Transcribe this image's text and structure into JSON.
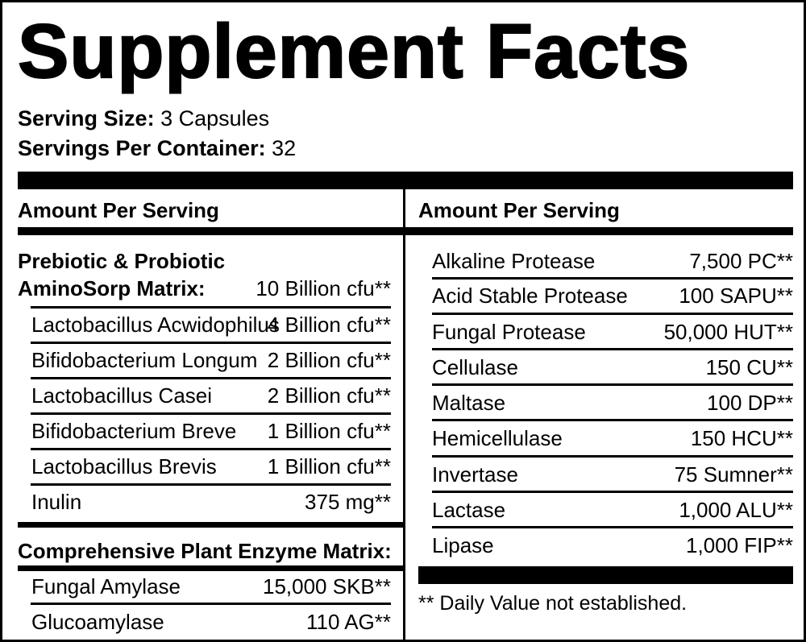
{
  "title": "Supplement Facts",
  "serving": {
    "size_label": "Serving Size:",
    "size_value": "3 Capsules",
    "per_container_label": "Servings Per Container:",
    "per_container_value": "32"
  },
  "left": {
    "header": "Amount Per Serving",
    "blend1": {
      "name_line1": "Prebiotic & Probiotic",
      "name_line2": "AminoSorp Matrix:",
      "amount": "10 Billion cfu**",
      "items": [
        {
          "name": "Lactobacillus Acwidophilus",
          "amount": "4 Billion cfu**"
        },
        {
          "name": "Bifidobacterium Longum",
          "amount": "2 Billion cfu**"
        },
        {
          "name": "Lactobacillus Casei",
          "amount": "2 Billion cfu**"
        },
        {
          "name": "Bifidobacterium Breve",
          "amount": "1 Billion cfu**"
        },
        {
          "name": "Lactobacillus Brevis",
          "amount": "1 Billion cfu**"
        },
        {
          "name": "Inulin",
          "amount": "375 mg**"
        }
      ]
    },
    "blend2": {
      "name": "Comprehensive Plant Enzyme Matrix:",
      "items": [
        {
          "name": "Fungal Amylase",
          "amount": "15,000 SKB**"
        },
        {
          "name": "Glucoamylase",
          "amount": "110 AG**"
        }
      ]
    }
  },
  "right": {
    "header": "Amount Per Serving",
    "items": [
      {
        "name": "Alkaline Protease",
        "amount": "7,500 PC**"
      },
      {
        "name": "Acid Stable Protease",
        "amount": "100 SAPU**"
      },
      {
        "name": "Fungal Protease",
        "amount": "50,000 HUT**"
      },
      {
        "name": "Cellulase",
        "amount": "150 CU**"
      },
      {
        "name": "Maltase",
        "amount": "100 DP**"
      },
      {
        "name": "Hemicellulase",
        "amount": "150 HCU**"
      },
      {
        "name": "Invertase",
        "amount": "75 Sumner**"
      },
      {
        "name": "Lactase",
        "amount": "1,000 ALU**"
      },
      {
        "name": "Lipase",
        "amount": "1,000 FIP**"
      }
    ],
    "footnote": "** Daily Value not established."
  }
}
